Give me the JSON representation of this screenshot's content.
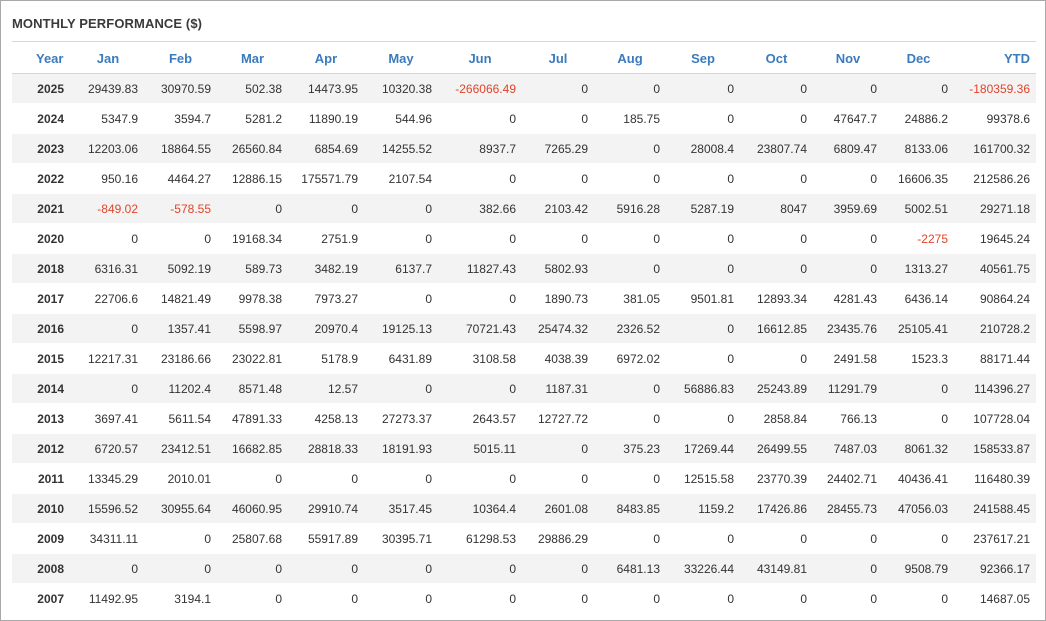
{
  "panel": {
    "title": "MONTHLY PERFORMANCE ($)"
  },
  "colors": {
    "header_text": "#3b7bbd",
    "negative": "#e0442a",
    "row_alt_bg": "#f3f3f3"
  },
  "table": {
    "headers": [
      "Year",
      "Jan",
      "Feb",
      "Mar",
      "Apr",
      "May",
      "Jun",
      "Jul",
      "Aug",
      "Sep",
      "Oct",
      "Nov",
      "Dec",
      "YTD"
    ],
    "rows": [
      [
        "2025",
        "29439.83",
        "30970.59",
        "502.38",
        "14473.95",
        "10320.38",
        "-266066.49",
        "0",
        "0",
        "0",
        "0",
        "0",
        "0",
        "-180359.36"
      ],
      [
        "2024",
        "5347.9",
        "3594.7",
        "5281.2",
        "11890.19",
        "544.96",
        "0",
        "0",
        "185.75",
        "0",
        "0",
        "47647.7",
        "24886.2",
        "99378.6"
      ],
      [
        "2023",
        "12203.06",
        "18864.55",
        "26560.84",
        "6854.69",
        "14255.52",
        "8937.7",
        "7265.29",
        "0",
        "28008.4",
        "23807.74",
        "6809.47",
        "8133.06",
        "161700.32"
      ],
      [
        "2022",
        "950.16",
        "4464.27",
        "12886.15",
        "175571.79",
        "2107.54",
        "0",
        "0",
        "0",
        "0",
        "0",
        "0",
        "16606.35",
        "212586.26"
      ],
      [
        "2021",
        "-849.02",
        "-578.55",
        "0",
        "0",
        "0",
        "382.66",
        "2103.42",
        "5916.28",
        "5287.19",
        "8047",
        "3959.69",
        "5002.51",
        "29271.18"
      ],
      [
        "2020",
        "0",
        "0",
        "19168.34",
        "2751.9",
        "0",
        "0",
        "0",
        "0",
        "0",
        "0",
        "0",
        "-2275",
        "19645.24"
      ],
      [
        "2018",
        "6316.31",
        "5092.19",
        "589.73",
        "3482.19",
        "6137.7",
        "11827.43",
        "5802.93",
        "0",
        "0",
        "0",
        "0",
        "1313.27",
        "40561.75"
      ],
      [
        "2017",
        "22706.6",
        "14821.49",
        "9978.38",
        "7973.27",
        "0",
        "0",
        "1890.73",
        "381.05",
        "9501.81",
        "12893.34",
        "4281.43",
        "6436.14",
        "90864.24"
      ],
      [
        "2016",
        "0",
        "1357.41",
        "5598.97",
        "20970.4",
        "19125.13",
        "70721.43",
        "25474.32",
        "2326.52",
        "0",
        "16612.85",
        "23435.76",
        "25105.41",
        "210728.2"
      ],
      [
        "2015",
        "12217.31",
        "23186.66",
        "23022.81",
        "5178.9",
        "6431.89",
        "3108.58",
        "4038.39",
        "6972.02",
        "0",
        "0",
        "2491.58",
        "1523.3",
        "88171.44"
      ],
      [
        "2014",
        "0",
        "11202.4",
        "8571.48",
        "12.57",
        "0",
        "0",
        "1187.31",
        "0",
        "56886.83",
        "25243.89",
        "11291.79",
        "0",
        "114396.27"
      ],
      [
        "2013",
        "3697.41",
        "5611.54",
        "47891.33",
        "4258.13",
        "27273.37",
        "2643.57",
        "12727.72",
        "0",
        "0",
        "2858.84",
        "766.13",
        "0",
        "107728.04"
      ],
      [
        "2012",
        "6720.57",
        "23412.51",
        "16682.85",
        "28818.33",
        "18191.93",
        "5015.11",
        "0",
        "375.23",
        "17269.44",
        "26499.55",
        "7487.03",
        "8061.32",
        "158533.87"
      ],
      [
        "2011",
        "13345.29",
        "2010.01",
        "0",
        "0",
        "0",
        "0",
        "0",
        "0",
        "12515.58",
        "23770.39",
        "24402.71",
        "40436.41",
        "116480.39"
      ],
      [
        "2010",
        "15596.52",
        "30955.64",
        "46060.95",
        "29910.74",
        "3517.45",
        "10364.4",
        "2601.08",
        "8483.85",
        "1159.2",
        "17426.86",
        "28455.73",
        "47056.03",
        "241588.45"
      ],
      [
        "2009",
        "34311.11",
        "0",
        "25807.68",
        "55917.89",
        "30395.71",
        "61298.53",
        "29886.29",
        "0",
        "0",
        "0",
        "0",
        "0",
        "237617.21"
      ],
      [
        "2008",
        "0",
        "0",
        "0",
        "0",
        "0",
        "0",
        "0",
        "6481.13",
        "33226.44",
        "43149.81",
        "0",
        "9508.79",
        "92366.17"
      ],
      [
        "2007",
        "11492.95",
        "3194.1",
        "0",
        "0",
        "0",
        "0",
        "0",
        "0",
        "0",
        "0",
        "0",
        "0",
        "14687.05"
      ]
    ]
  }
}
